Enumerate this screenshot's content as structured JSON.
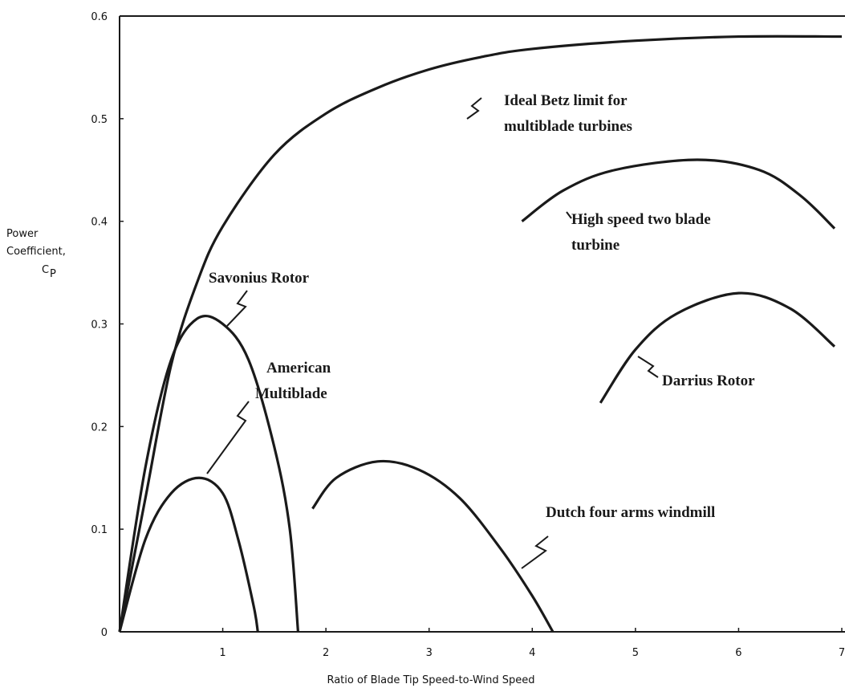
{
  "chart_data": {
    "type": "line",
    "xlabel": "Ratio of Blade Tip Speed-to-Wind Speed",
    "ylabel_lines": [
      "Power",
      "Coefficient,"
    ],
    "ylabel_symbol": "C",
    "ylabel_subscript": "P",
    "xlim": [
      0,
      7
    ],
    "ylim": [
      0,
      0.6
    ],
    "xticks": [
      1,
      2,
      3,
      4,
      5,
      6,
      7
    ],
    "yticks": [
      0,
      0.1,
      0.2,
      0.3,
      0.4,
      0.5,
      0.6
    ],
    "color": "#1a1a1a",
    "series": [
      {
        "label": [
          "Ideal Betz limit for",
          "multiblade turbines"
        ],
        "x": [
          0,
          0.25,
          0.5,
          0.75,
          1,
          1.5,
          2,
          2.5,
          3,
          3.5,
          4,
          5,
          6,
          7
        ],
        "values": [
          0,
          0.13,
          0.26,
          0.34,
          0.395,
          0.465,
          0.505,
          0.53,
          0.548,
          0.56,
          0.568,
          0.576,
          0.58,
          0.58
        ]
      },
      {
        "label": [
          "High speed two blade",
          "turbine"
        ],
        "x": [
          3.9,
          4.3,
          4.8,
          5.6,
          6.2,
          6.6,
          6.93
        ],
        "values": [
          0.4,
          0.43,
          0.45,
          0.46,
          0.45,
          0.425,
          0.393
        ]
      },
      {
        "label": [
          "Savonius Rotor"
        ],
        "x": [
          0,
          0.25,
          0.5,
          0.75,
          1,
          1.25,
          1.5,
          1.65,
          1.73
        ],
        "values": [
          0,
          0.16,
          0.265,
          0.305,
          0.3,
          0.265,
          0.18,
          0.1,
          0
        ]
      },
      {
        "label": [
          "American",
          "Multiblade"
        ],
        "x": [
          0,
          0.25,
          0.5,
          0.77,
          1,
          1.15,
          1.3,
          1.34
        ],
        "values": [
          0,
          0.09,
          0.135,
          0.15,
          0.135,
          0.09,
          0.025,
          0
        ]
      },
      {
        "label": [
          "Darrius Rotor"
        ],
        "x": [
          4.66,
          5,
          5.4,
          6,
          6.5,
          6.93
        ],
        "values": [
          0.223,
          0.275,
          0.31,
          0.33,
          0.315,
          0.278
        ]
      },
      {
        "label": [
          "Dutch four arms windmill"
        ],
        "x": [
          1.87,
          2.1,
          2.5,
          2.9,
          3.3,
          3.7,
          4,
          4.2
        ],
        "values": [
          0.12,
          0.15,
          0.166,
          0.158,
          0.13,
          0.08,
          0.035,
          0
        ]
      }
    ]
  }
}
